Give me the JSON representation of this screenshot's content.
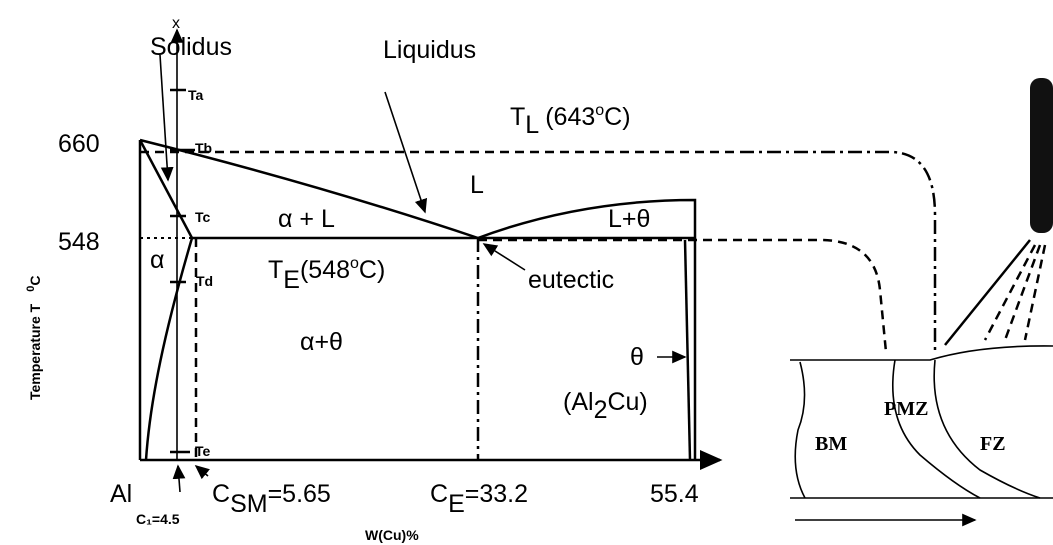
{
  "axis": {
    "top_label": "x",
    "y_label": "Temperature T",
    "y_unit": {
      "sup": "0",
      "main": "C"
    },
    "x_label": "W(Cu)%"
  },
  "temperatures": {
    "t660": "660",
    "t548": "548"
  },
  "ticks": {
    "ta": "Ta",
    "tb": "Tb",
    "tc": "Tc",
    "td": "Td",
    "te": "Te"
  },
  "curves": {
    "solidus": "Solidus",
    "liquidus": "Liquidus"
  },
  "liquidus_temp": {
    "main": "T",
    "sub": "L",
    "rest": " (643",
    "sup": "o",
    "end": "C)"
  },
  "eutectic_temp": {
    "main": "T",
    "sub": "E",
    "rest": "(548",
    "sup": "o",
    "end": "C)"
  },
  "phases": {
    "liquid": "L",
    "alpha_liquid": "α + L",
    "liquid_theta": "L+θ",
    "alpha": "α",
    "alpha_theta": "α+θ",
    "theta": "θ",
    "compound": {
      "open": "(Al",
      "sub": "2",
      "close": "Cu)"
    },
    "eutectic": "eutectic"
  },
  "compositions": {
    "al": "Al",
    "c1": "C₁=4.5",
    "csm": {
      "main": "C",
      "sub": "SM",
      "rest": "=5.65"
    },
    "ce": {
      "main": "C",
      "sub": "E",
      "rest": "=33.2"
    },
    "c554": "55.4"
  },
  "weld": {
    "bm": "BM",
    "pmz": "PMZ",
    "fz": "FZ"
  }
}
